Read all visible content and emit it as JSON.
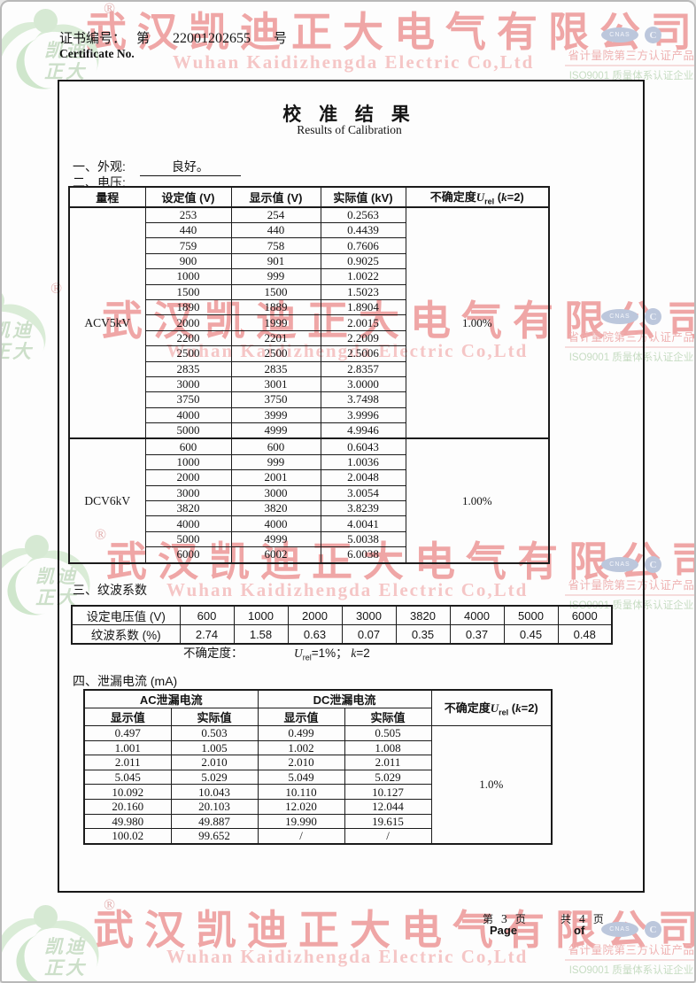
{
  "header": {
    "cert_label_cn": "证书编号：",
    "cert_no_prefix": "第",
    "cert_number": "22001202655",
    "cert_no_suffix": "号",
    "cert_label_en": "Certificate No."
  },
  "title": {
    "cn": "校 准 结 果",
    "en": "Results of Calibration"
  },
  "watermark": {
    "company_cn": "武汉凯迪正大电气有限公司",
    "company_en": "Wuhan Kaidizhengda Electric Co,Ltd",
    "logo_line1": "凯迪",
    "logo_line2": "正大",
    "registered": "®",
    "cnas_label": "CNAS",
    "cc_label": "C",
    "cert_red_line": "省计量院第三方认证产品",
    "cert_green_line": "ISO9001 质量体系认证企业",
    "colors": {
      "watermark_red": "#efa6a6",
      "watermark_red_light": "#f5c6c6",
      "logo_green": "#d6e9d3",
      "cert_blue": "#bcc7dc",
      "cert_red_text": "#efb2b2",
      "cert_green_text": "#c6dcc2"
    }
  },
  "appearance": {
    "label": "一、外观:",
    "value": "良好。"
  },
  "voltage": {
    "label": "二、电压:",
    "col_range": "量程",
    "col_set": "设定值 (V)",
    "col_display": "显示值 (V)",
    "col_actual": "实际值 (kV)",
    "col_uncertainty": {
      "pre": "不确定度",
      "sym": "U",
      "sub": "rel",
      "mid": " (",
      "k": "k",
      "post": "=2)"
    },
    "groups": [
      {
        "range": "ACV5kV",
        "uncertainty": "1.00%",
        "rows": [
          [
            "253",
            "254",
            "0.2563"
          ],
          [
            "440",
            "440",
            "0.4439"
          ],
          [
            "759",
            "758",
            "0.7606"
          ],
          [
            "900",
            "901",
            "0.9025"
          ],
          [
            "1000",
            "999",
            "1.0022"
          ],
          [
            "1500",
            "1500",
            "1.5023"
          ],
          [
            "1890",
            "1889",
            "1.8904"
          ],
          [
            "2000",
            "1999",
            "2.0015"
          ],
          [
            "2200",
            "2201",
            "2.2009"
          ],
          [
            "2500",
            "2500",
            "2.5006"
          ],
          [
            "2835",
            "2835",
            "2.8357"
          ],
          [
            "3000",
            "3001",
            "3.0000"
          ],
          [
            "3750",
            "3750",
            "3.7498"
          ],
          [
            "4000",
            "3999",
            "3.9996"
          ],
          [
            "5000",
            "4999",
            "4.9946"
          ]
        ]
      },
      {
        "range": "DCV6kV",
        "uncertainty": "1.00%",
        "rows": [
          [
            "600",
            "600",
            "0.6043"
          ],
          [
            "1000",
            "999",
            "1.0036"
          ],
          [
            "2000",
            "2001",
            "2.0048"
          ],
          [
            "3000",
            "3000",
            "3.0054"
          ],
          [
            "3820",
            "3820",
            "3.8239"
          ],
          [
            "4000",
            "4000",
            "4.0041"
          ],
          [
            "5000",
            "4999",
            "5.0038"
          ],
          [
            "6000",
            "6002",
            "6.0038"
          ]
        ]
      }
    ]
  },
  "ripple": {
    "label": "三、纹波系数",
    "row_voltage_label": "设定电压值 (V)",
    "row_coeff_label": "纹波系数 (%)",
    "voltages": [
      "600",
      "1000",
      "2000",
      "3000",
      "3820",
      "4000",
      "5000",
      "6000"
    ],
    "coefficients": [
      "2.74",
      "1.58",
      "0.63",
      "0.07",
      "0.35",
      "0.37",
      "0.45",
      "0.48"
    ],
    "uncertainty_label": "不确定度：",
    "uncertainty": {
      "sym": "U",
      "sub": "rel",
      "mid": "=1%；  ",
      "k": "k",
      "post": "=2"
    }
  },
  "leakage": {
    "label": "四、泄漏电流 (mA)",
    "col_ac": "AC泄漏电流",
    "col_dc": "DC泄漏电流",
    "col_display": "显示值",
    "col_actual": "实际值",
    "col_uncertainty": {
      "pre": "不确定度",
      "sym": "U",
      "sub": "rel",
      "mid": " (",
      "k": "k",
      "post": "=2)"
    },
    "uncertainty": "1.0%",
    "rows": [
      [
        "0.497",
        "0.503",
        "0.499",
        "0.505"
      ],
      [
        "1.001",
        "1.005",
        "1.002",
        "1.008"
      ],
      [
        "2.011",
        "2.010",
        "2.010",
        "2.011"
      ],
      [
        "5.045",
        "5.029",
        "5.049",
        "5.029"
      ],
      [
        "10.092",
        "10.043",
        "10.110",
        "10.127"
      ],
      [
        "20.160",
        "20.103",
        "12.020",
        "12.044"
      ],
      [
        "49.980",
        "49.887",
        "19.990",
        "19.615"
      ],
      [
        "100.02",
        "99.652",
        "/",
        "/"
      ]
    ]
  },
  "footer": {
    "page_pre": "第",
    "page_num": "3",
    "page_post": "页",
    "total_pre": "共",
    "total_num": "4",
    "total_post": "页",
    "page_en": "Page",
    "of_en": "of"
  }
}
